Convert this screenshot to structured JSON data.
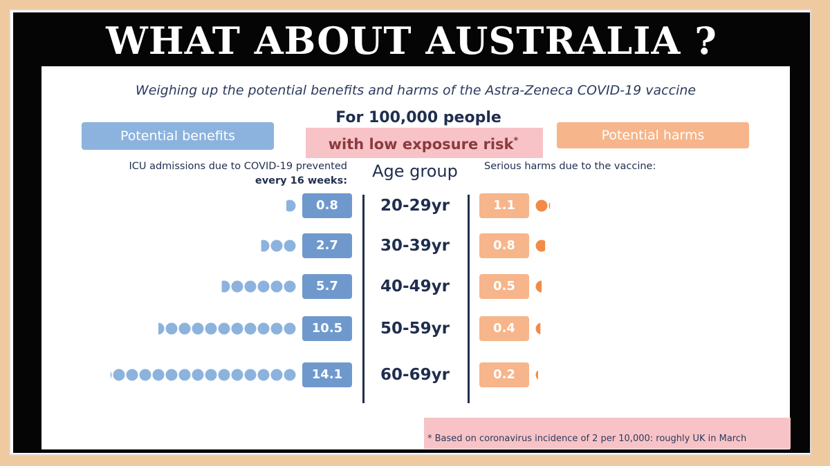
{
  "headline": "WHAT ABOUT AUSTRALIA ?",
  "subtitle": "Weighing up the potential benefits and harms of the Astra-Zeneca COVID-19 vaccine",
  "population": {
    "line1": "For 100,000 people",
    "line2": "with low exposure risk",
    "marker": "*"
  },
  "benefits": {
    "button": "Potential benefits",
    "caption_line1": "ICU admissions due to COVID-19 prevented",
    "caption_line2": "every 16 weeks:"
  },
  "harms": {
    "button": "Potential harms",
    "caption": "Serious harms due to the vaccine:"
  },
  "age_header": "Age group",
  "footnote": "* Based on coronavirus incidence of 2 per 10,000: roughly UK in March",
  "colors": {
    "benefit": "#6f99cd",
    "benefit_dot": "#8cb3dd",
    "harm": "#f6b58a",
    "harm_dot": "#f28b45",
    "navy": "#1f2d4f"
  },
  "chart_data": {
    "type": "bar",
    "categories": [
      "20-29yr",
      "30-39yr",
      "40-49yr",
      "50-59yr",
      "60-69yr"
    ],
    "series": [
      {
        "name": "Potential benefits",
        "values": [
          0.8,
          2.7,
          5.7,
          10.5,
          14.1
        ]
      },
      {
        "name": "Potential harms",
        "values": [
          1.1,
          0.8,
          0.5,
          0.4,
          0.2
        ]
      }
    ],
    "value_labels": {
      "benefits": [
        "0.8",
        "2.7",
        "5.7",
        "10.5",
        "14.1"
      ],
      "harms": [
        "1.1",
        "0.8",
        "0.5",
        "0.4",
        "0.2"
      ]
    }
  }
}
